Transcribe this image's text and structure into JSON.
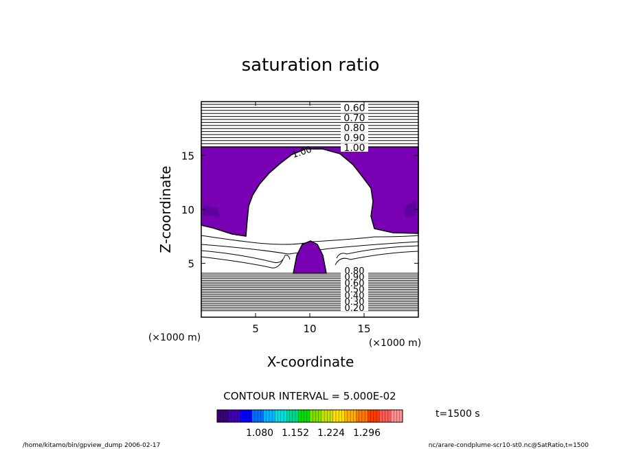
{
  "chart_data": {
    "type": "contour",
    "title": "saturation ratio",
    "xlabel": "X-coordinate",
    "ylabel": "Z-coordinate",
    "x_unit_note": "(×1000 m)",
    "z_unit_note": "(×1000 m)",
    "xlim": [
      0,
      20
    ],
    "ylim": [
      0,
      20
    ],
    "x_ticks": [
      5,
      10,
      15
    ],
    "y_ticks": [
      5,
      10,
      15
    ],
    "contour_interval_text": "CONTOUR INTERVAL = 5.000E-02",
    "contour_labels_top": [
      "0.60",
      "0.70",
      "0.80",
      "0.90",
      "1.00"
    ],
    "contour_labels_bottom": [
      "0.20",
      "0.30",
      "0.40",
      "0.50",
      "0.60",
      "0.90",
      "0.80"
    ],
    "interior_label": "1.00",
    "shaded_level_min": 1.0,
    "shaded_color": "#7a00b4",
    "colorbar": {
      "tick_labels": [
        "1.080",
        "1.152",
        "1.224",
        "1.296"
      ],
      "colors": [
        "#3a007a",
        "#3c00b6",
        "#0000ff",
        "#0070ff",
        "#00b4ff",
        "#00e0e0",
        "#00d890",
        "#00e000",
        "#7ee000",
        "#c8e000",
        "#ffe000",
        "#ffb000",
        "#ff7800",
        "#ff3c00",
        "#ff5a5a",
        "#ff9090"
      ]
    },
    "time_label": "t=1500 s"
  },
  "footer": {
    "left": "/home/kitamo/bin/gpview_dump  2006-02-17",
    "right": "nc/arare-condplume-scr10-st0.nc@SatRatio,t=1500"
  }
}
